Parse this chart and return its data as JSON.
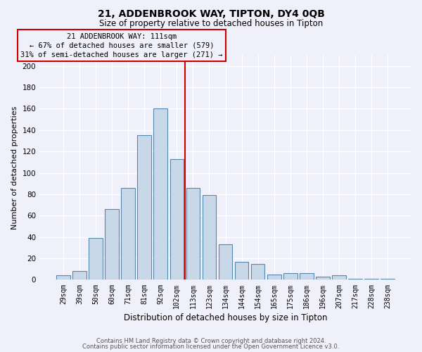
{
  "title": "21, ADDENBROOK WAY, TIPTON, DY4 0QB",
  "subtitle": "Size of property relative to detached houses in Tipton",
  "xlabel": "Distribution of detached houses by size in Tipton",
  "ylabel": "Number of detached properties",
  "footnote1": "Contains HM Land Registry data © Crown copyright and database right 2024.",
  "footnote2": "Contains public sector information licensed under the Open Government Licence v3.0.",
  "categories": [
    "29sqm",
    "39sqm",
    "50sqm",
    "60sqm",
    "71sqm",
    "81sqm",
    "92sqm",
    "102sqm",
    "113sqm",
    "123sqm",
    "134sqm",
    "144sqm",
    "154sqm",
    "165sqm",
    "175sqm",
    "186sqm",
    "196sqm",
    "207sqm",
    "217sqm",
    "228sqm",
    "238sqm"
  ],
  "values": [
    4,
    8,
    39,
    66,
    86,
    135,
    160,
    113,
    86,
    79,
    33,
    17,
    15,
    5,
    6,
    6,
    3,
    4,
    1,
    1,
    1
  ],
  "bar_color": "#c8d8e8",
  "bar_edge_color": "#5588aa",
  "vline_color": "#cc0000",
  "vline_index": 7.5,
  "annotation_title": "21 ADDENBROOK WAY: 111sqm",
  "annotation_line1": "← 67% of detached houses are smaller (579)",
  "annotation_line2": "31% of semi-detached houses are larger (271) →",
  "annotation_box_edge": "#cc0000",
  "ylim": [
    0,
    210
  ],
  "yticks": [
    0,
    20,
    40,
    60,
    80,
    100,
    120,
    140,
    160,
    180,
    200
  ],
  "bg_color": "#f0f0fa",
  "grid_color": "#ffffff",
  "title_fontsize": 10,
  "subtitle_fontsize": 8.5,
  "tick_fontsize": 7,
  "ylabel_fontsize": 8,
  "xlabel_fontsize": 8.5,
  "footnote_fontsize": 6
}
